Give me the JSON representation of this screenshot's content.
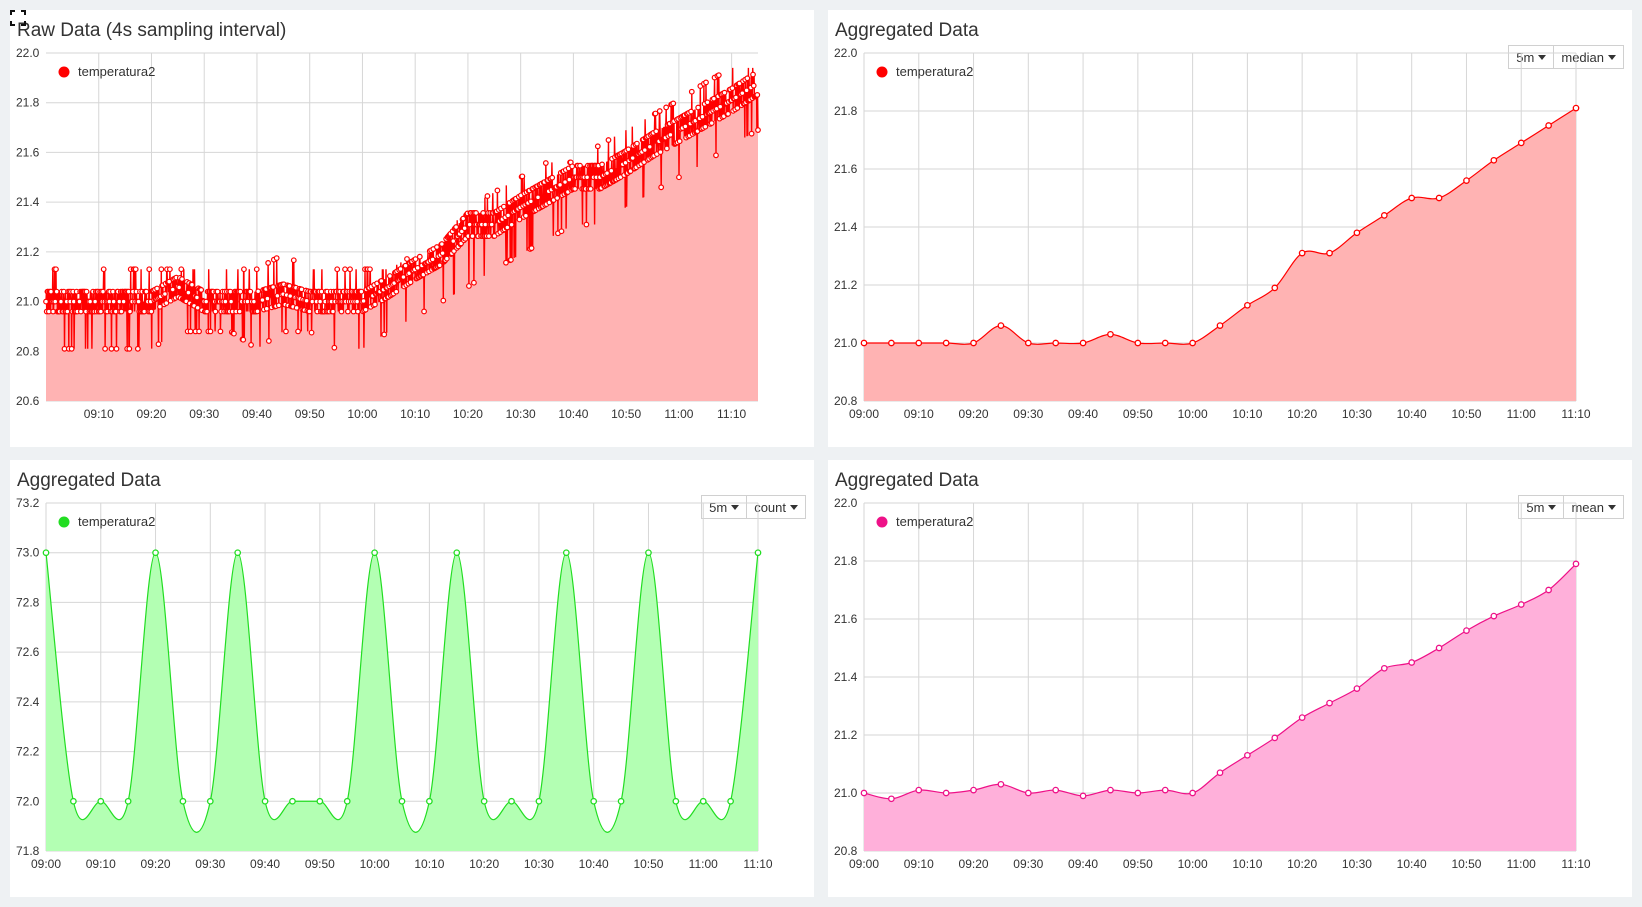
{
  "panels": [
    {
      "title": "Raw Data (4s sampling interval)",
      "controls": null,
      "chart_data": {
        "type": "area",
        "title": "Raw Data (4s sampling interval)",
        "x_ticks": [
          "09:10",
          "09:20",
          "09:30",
          "09:40",
          "09:50",
          "10:00",
          "10:10",
          "10:20",
          "10:30",
          "10:40",
          "10:50",
          "11:00",
          "11:10"
        ],
        "x_range": [
          "09:00",
          "11:15"
        ],
        "ylim": [
          20.6,
          22.0
        ],
        "y_ticks": [
          20.6,
          20.8,
          21.0,
          21.2,
          21.4,
          21.6,
          21.8,
          22.0
        ],
        "grid": true,
        "legend": "top-left",
        "series": [
          {
            "name": "temperatura2",
            "color": "#ff0000",
            "fill": "#ffb3b3",
            "x": [
              "09:00",
              "09:05",
              "09:10",
              "09:15",
              "09:20",
              "09:25",
              "09:30",
              "09:35",
              "09:40",
              "09:45",
              "09:50",
              "09:55",
              "10:00",
              "10:05",
              "10:10",
              "10:15",
              "10:20",
              "10:25",
              "10:30",
              "10:35",
              "10:40",
              "10:45",
              "10:50",
              "10:55",
              "11:00",
              "11:05",
              "11:10",
              "11:15"
            ],
            "values": [
              21.0,
              21.0,
              21.0,
              21.0,
              21.0,
              21.06,
              21.0,
              21.0,
              21.0,
              21.03,
              21.0,
              21.0,
              21.0,
              21.06,
              21.13,
              21.19,
              21.31,
              21.31,
              21.38,
              21.44,
              21.5,
              21.5,
              21.56,
              21.63,
              21.69,
              21.75,
              21.81,
              21.88
            ],
            "noise": [
              0.06,
              0.06,
              0.06,
              0.06,
              0.06,
              0.06,
              0.06,
              0.06,
              0.06,
              0.06,
              0.06,
              0.06,
              0.06,
              0.06,
              0.06,
              0.06,
              0.07,
              0.07,
              0.07,
              0.07,
              0.07,
              0.07,
              0.07,
              0.07,
              0.07,
              0.07,
              0.07,
              0.07
            ],
            "min": [
              20.81,
              20.81,
              20.81,
              20.81,
              20.81,
              20.88,
              20.88,
              20.88,
              20.81,
              20.88,
              20.88,
              20.81,
              20.81,
              20.88,
              20.94,
              21.0,
              21.06,
              21.13,
              21.19,
              21.25,
              21.31,
              21.31,
              21.38,
              21.44,
              21.5,
              21.56,
              21.63,
              21.69
            ],
            "max": [
              21.13,
              21.13,
              21.13,
              21.13,
              21.13,
              21.13,
              21.13,
              21.13,
              21.13,
              21.19,
              21.13,
              21.13,
              21.13,
              21.13,
              21.19,
              21.25,
              21.38,
              21.44,
              21.5,
              21.56,
              21.56,
              21.63,
              21.69,
              21.75,
              21.81,
              21.88,
              21.94,
              21.94
            ]
          }
        ]
      }
    },
    {
      "title": "Aggregated Data",
      "controls": {
        "interval": "5m",
        "aggregation": "median"
      },
      "chart_data": {
        "type": "area",
        "title": "Aggregated Data",
        "x_ticks": [
          "09:00",
          "09:10",
          "09:20",
          "09:30",
          "09:40",
          "09:50",
          "10:00",
          "10:10",
          "10:20",
          "10:30",
          "10:40",
          "10:50",
          "11:00",
          "11:10"
        ],
        "x_range": [
          "09:00",
          "11:10"
        ],
        "ylim": [
          20.8,
          22.0
        ],
        "y_ticks": [
          20.8,
          21.0,
          21.2,
          21.4,
          21.6,
          21.8,
          22.0
        ],
        "grid": true,
        "legend": "top-left",
        "series": [
          {
            "name": "temperatura2",
            "color": "#ff0000",
            "fill": "#ffb3b3",
            "x": [
              "09:00",
              "09:05",
              "09:10",
              "09:15",
              "09:20",
              "09:25",
              "09:30",
              "09:35",
              "09:40",
              "09:45",
              "09:50",
              "09:55",
              "10:00",
              "10:05",
              "10:10",
              "10:15",
              "10:20",
              "10:25",
              "10:30",
              "10:35",
              "10:40",
              "10:45",
              "10:50",
              "10:55",
              "11:00",
              "11:05",
              "11:10"
            ],
            "values": [
              21.0,
              21.0,
              21.0,
              21.0,
              21.0,
              21.06,
              21.0,
              21.0,
              21.0,
              21.03,
              21.0,
              21.0,
              21.0,
              21.06,
              21.13,
              21.19,
              21.31,
              21.31,
              21.38,
              21.44,
              21.5,
              21.5,
              21.56,
              21.63,
              21.69,
              21.75,
              21.81
            ]
          }
        ]
      }
    },
    {
      "title": "Aggregated Data",
      "controls": {
        "interval": "5m",
        "aggregation": "count"
      },
      "chart_data": {
        "type": "area",
        "title": "Aggregated Data",
        "x_ticks": [
          "09:00",
          "09:10",
          "09:20",
          "09:30",
          "09:40",
          "09:50",
          "10:00",
          "10:10",
          "10:20",
          "10:30",
          "10:40",
          "10:50",
          "11:00",
          "11:10"
        ],
        "x_range": [
          "09:00",
          "11:10"
        ],
        "ylim": [
          71.8,
          73.2
        ],
        "y_ticks": [
          71.8,
          72.0,
          72.2,
          72.4,
          72.6,
          72.8,
          73.0,
          73.2
        ],
        "grid": true,
        "legend": "top-left",
        "series": [
          {
            "name": "temperatura2",
            "color": "#22dd22",
            "fill": "#b3ffb3",
            "x": [
              "09:00",
              "09:05",
              "09:10",
              "09:15",
              "09:20",
              "09:25",
              "09:30",
              "09:35",
              "09:40",
              "09:45",
              "09:50",
              "09:55",
              "10:00",
              "10:05",
              "10:10",
              "10:15",
              "10:20",
              "10:25",
              "10:30",
              "10:35",
              "10:40",
              "10:45",
              "10:50",
              "10:55",
              "11:00",
              "11:05",
              "11:10"
            ],
            "values": [
              73,
              72,
              72,
              72,
              73,
              72,
              72,
              73,
              72,
              72,
              72,
              72,
              73,
              72,
              72,
              73,
              72,
              72,
              72,
              73,
              72,
              72,
              73,
              72,
              72,
              72,
              73
            ]
          }
        ]
      }
    },
    {
      "title": "Aggregated Data",
      "controls": {
        "interval": "5m",
        "aggregation": "mean"
      },
      "chart_data": {
        "type": "area",
        "title": "Aggregated Data",
        "x_ticks": [
          "09:00",
          "09:10",
          "09:20",
          "09:30",
          "09:40",
          "09:50",
          "10:00",
          "10:10",
          "10:20",
          "10:30",
          "10:40",
          "10:50",
          "11:00",
          "11:10"
        ],
        "x_range": [
          "09:00",
          "11:10"
        ],
        "ylim": [
          20.8,
          22.0
        ],
        "y_ticks": [
          20.8,
          21.0,
          21.2,
          21.4,
          21.6,
          21.8,
          22.0
        ],
        "grid": true,
        "legend": "top-left",
        "series": [
          {
            "name": "temperatura2",
            "color": "#ee1188",
            "fill": "#ffb0da",
            "x": [
              "09:00",
              "09:05",
              "09:10",
              "09:15",
              "09:20",
              "09:25",
              "09:30",
              "09:35",
              "09:40",
              "09:45",
              "09:50",
              "09:55",
              "10:00",
              "10:05",
              "10:10",
              "10:15",
              "10:20",
              "10:25",
              "10:30",
              "10:35",
              "10:40",
              "10:45",
              "10:50",
              "10:55",
              "11:00",
              "11:05",
              "11:10"
            ],
            "values": [
              21.0,
              20.98,
              21.01,
              21.0,
              21.01,
              21.03,
              21.0,
              21.01,
              20.99,
              21.01,
              21.0,
              21.01,
              21.0,
              21.07,
              21.13,
              21.19,
              21.26,
              21.31,
              21.36,
              21.43,
              21.45,
              21.5,
              21.56,
              21.61,
              21.65,
              21.7,
              21.79
            ]
          }
        ]
      }
    }
  ],
  "fullscreen_icon": "fullscreen-icon"
}
